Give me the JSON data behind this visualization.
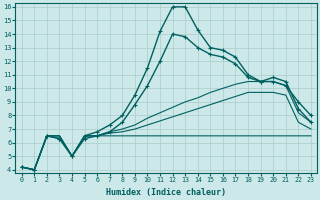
{
  "xlabel": "Humidex (Indice chaleur)",
  "xlim": [
    -0.5,
    23.5
  ],
  "ylim": [
    3.8,
    16.3
  ],
  "xticks": [
    0,
    1,
    2,
    3,
    4,
    5,
    6,
    7,
    8,
    9,
    10,
    11,
    12,
    13,
    14,
    15,
    16,
    17,
    18,
    19,
    20,
    21,
    22,
    23
  ],
  "yticks": [
    4,
    5,
    6,
    7,
    8,
    9,
    10,
    11,
    12,
    13,
    14,
    15,
    16
  ],
  "bg_color": "#cce8e8",
  "line_color": "#006060",
  "grid_color": "#aacccc",
  "lines": [
    {
      "x": [
        0,
        1,
        2,
        3,
        4,
        5,
        6,
        7,
        8,
        9,
        10,
        11,
        12,
        13,
        14,
        15,
        16,
        17,
        18,
        19,
        20,
        21,
        22,
        23
      ],
      "y": [
        4.2,
        4.0,
        6.5,
        6.3,
        5.0,
        6.5,
        6.8,
        7.3,
        8.0,
        9.5,
        11.5,
        14.2,
        16.0,
        16.0,
        14.3,
        13.0,
        12.8,
        12.3,
        11.0,
        10.5,
        10.8,
        10.5,
        8.5,
        7.5
      ],
      "marker": "+",
      "lw": 1.0
    },
    {
      "x": [
        0,
        1,
        2,
        3,
        4,
        5,
        6,
        7,
        8,
        9,
        10,
        11,
        12,
        13,
        14,
        15,
        16,
        17,
        18,
        19,
        20,
        21,
        22,
        23
      ],
      "y": [
        4.2,
        4.0,
        6.5,
        6.3,
        5.0,
        6.3,
        6.5,
        6.8,
        7.5,
        8.8,
        10.2,
        12.0,
        14.0,
        13.8,
        13.0,
        12.5,
        12.3,
        11.8,
        10.8,
        10.5,
        10.5,
        10.2,
        9.0,
        8.0
      ],
      "marker": "+",
      "lw": 1.0
    },
    {
      "x": [
        0,
        1,
        2,
        3,
        4,
        5,
        6,
        7,
        8,
        9,
        10,
        11,
        12,
        13,
        14,
        15,
        16,
        17,
        18,
        19,
        20,
        21,
        22,
        23
      ],
      "y": [
        4.2,
        4.0,
        6.5,
        6.5,
        5.0,
        6.5,
        6.5,
        6.8,
        7.0,
        7.3,
        7.8,
        8.2,
        8.6,
        9.0,
        9.3,
        9.7,
        10.0,
        10.3,
        10.5,
        10.5,
        10.5,
        10.2,
        8.2,
        7.5
      ],
      "marker": null,
      "lw": 0.8
    },
    {
      "x": [
        0,
        1,
        2,
        3,
        4,
        5,
        6,
        7,
        8,
        9,
        10,
        11,
        12,
        13,
        14,
        15,
        16,
        17,
        18,
        19,
        20,
        21,
        22,
        23
      ],
      "y": [
        4.2,
        4.0,
        6.5,
        6.5,
        5.0,
        6.5,
        6.5,
        6.7,
        6.8,
        7.0,
        7.3,
        7.6,
        7.9,
        8.2,
        8.5,
        8.8,
        9.1,
        9.4,
        9.7,
        9.7,
        9.7,
        9.5,
        7.5,
        7.0
      ],
      "marker": null,
      "lw": 0.8
    },
    {
      "x": [
        0,
        1,
        2,
        3,
        4,
        5,
        6,
        7,
        8,
        9,
        10,
        11,
        12,
        13,
        14,
        15,
        16,
        17,
        18,
        19,
        20,
        21,
        22,
        23
      ],
      "y": [
        4.2,
        4.0,
        6.5,
        6.5,
        5.0,
        6.5,
        6.5,
        6.5,
        6.5,
        6.5,
        6.5,
        6.5,
        6.5,
        6.5,
        6.5,
        6.5,
        6.5,
        6.5,
        6.5,
        6.5,
        6.5,
        6.5,
        6.5,
        6.5
      ],
      "marker": null,
      "lw": 0.8
    }
  ]
}
